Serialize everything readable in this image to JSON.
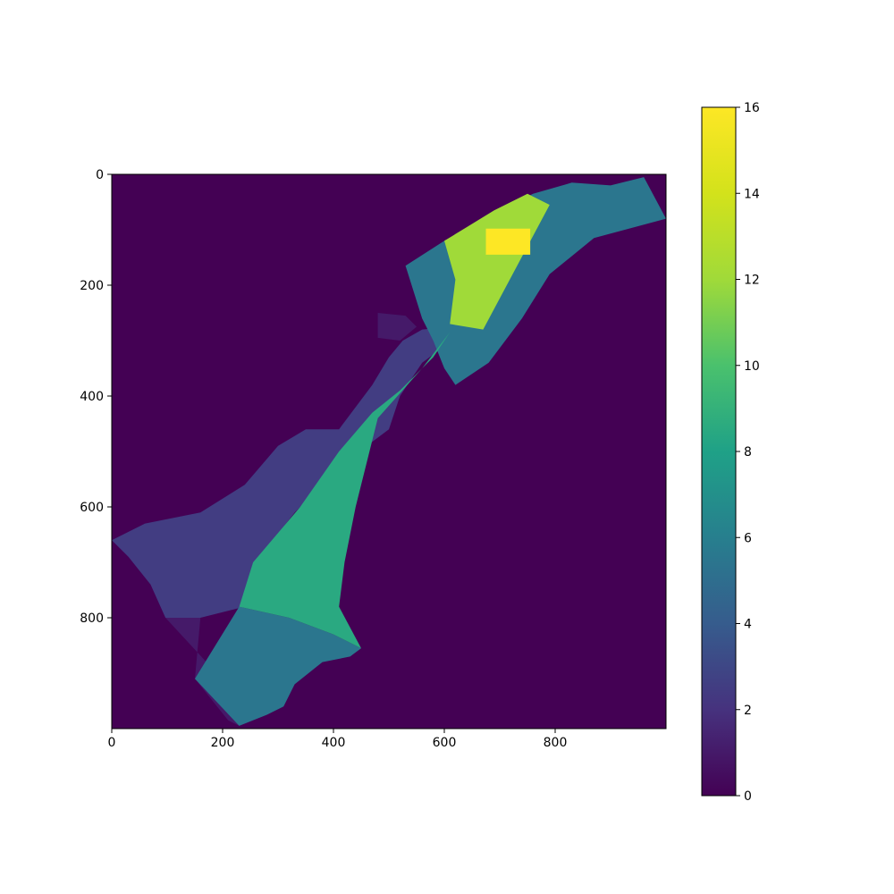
{
  "chart_data": {
    "type": "heatmap",
    "title": "",
    "xlabel": "",
    "ylabel": "",
    "xlim": [
      0,
      1000
    ],
    "ylim": [
      1000,
      0
    ],
    "x_ticks": [
      "0",
      "200",
      "400",
      "600",
      "800"
    ],
    "y_ticks": [
      "0",
      "200",
      "400",
      "600",
      "800"
    ],
    "colormap": "viridis",
    "colorbar": {
      "vmin": 0,
      "vmax": 16,
      "ticks": [
        "0",
        "2",
        "4",
        "6",
        "8",
        "10",
        "12",
        "14",
        "16"
      ]
    },
    "background_value": 0,
    "regions": [
      {
        "value": 1,
        "points": [
          [
            97,
            800
          ],
          [
            160,
            800
          ],
          [
            150,
            910
          ],
          [
            210,
            985
          ],
          [
            230,
            995
          ],
          [
            180,
            890
          ],
          [
            97,
            800
          ]
        ]
      },
      {
        "value": 1,
        "points": [
          [
            480,
            250
          ],
          [
            530,
            255
          ],
          [
            550,
            275
          ],
          [
            520,
            300
          ],
          [
            480,
            295
          ]
        ]
      },
      {
        "value": 2.5,
        "points": [
          [
            0,
            660
          ],
          [
            60,
            630
          ],
          [
            160,
            610
          ],
          [
            240,
            560
          ],
          [
            300,
            490
          ],
          [
            350,
            460
          ],
          [
            410,
            460
          ],
          [
            440,
            420
          ],
          [
            470,
            380
          ],
          [
            500,
            330
          ],
          [
            525,
            300
          ],
          [
            560,
            280
          ],
          [
            610,
            275
          ],
          [
            600,
            310
          ],
          [
            560,
            340
          ],
          [
            520,
            400
          ],
          [
            500,
            460
          ],
          [
            420,
            520
          ],
          [
            330,
            610
          ],
          [
            260,
            700
          ],
          [
            240,
            780
          ],
          [
            160,
            800
          ],
          [
            97,
            800
          ],
          [
            70,
            740
          ],
          [
            30,
            690
          ]
        ]
      },
      {
        "value": 5.5,
        "points": [
          [
            530,
            165
          ],
          [
            600,
            120
          ],
          [
            690,
            70
          ],
          [
            760,
            35
          ],
          [
            830,
            15
          ],
          [
            900,
            20
          ],
          [
            960,
            5
          ],
          [
            1000,
            80
          ],
          [
            870,
            115
          ],
          [
            790,
            180
          ],
          [
            740,
            260
          ],
          [
            680,
            340
          ],
          [
            620,
            380
          ],
          [
            600,
            350
          ],
          [
            580,
            300
          ],
          [
            560,
            260
          ]
        ]
      },
      {
        "value": 5.5,
        "points": [
          [
            150,
            910
          ],
          [
            230,
            780
          ],
          [
            320,
            800
          ],
          [
            400,
            830
          ],
          [
            450,
            855
          ],
          [
            430,
            870
          ],
          [
            380,
            880
          ],
          [
            330,
            920
          ],
          [
            310,
            960
          ],
          [
            280,
            975
          ],
          [
            230,
            995
          ]
        ]
      },
      {
        "value": 8.5,
        "points": [
          [
            255,
            700
          ],
          [
            340,
            600
          ],
          [
            410,
            500
          ],
          [
            470,
            430
          ],
          [
            520,
            390
          ],
          [
            580,
            330
          ],
          [
            610,
            285
          ],
          [
            560,
            350
          ],
          [
            480,
            440
          ],
          [
            460,
            520
          ],
          [
            440,
            600
          ],
          [
            420,
            700
          ],
          [
            410,
            780
          ],
          [
            450,
            855
          ],
          [
            400,
            830
          ],
          [
            320,
            800
          ],
          [
            230,
            780
          ]
        ]
      },
      {
        "value": 12,
        "points": [
          [
            600,
            120
          ],
          [
            690,
            65
          ],
          [
            750,
            35
          ],
          [
            790,
            55
          ],
          [
            670,
            280
          ],
          [
            610,
            270
          ],
          [
            620,
            190
          ]
        ]
      },
      {
        "value": 16,
        "points": [
          [
            675,
            98
          ],
          [
            755,
            98
          ],
          [
            755,
            145
          ],
          [
            675,
            145
          ]
        ]
      }
    ]
  }
}
